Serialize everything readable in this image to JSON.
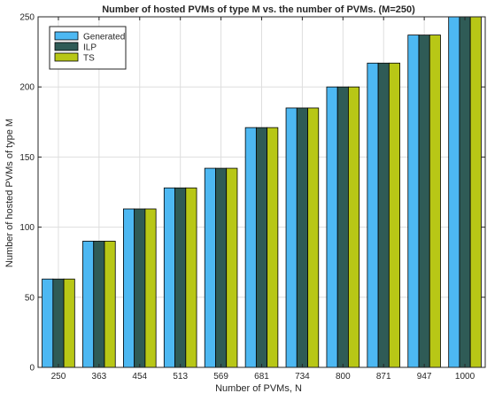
{
  "chart_data": {
    "type": "bar",
    "title": "Number of hosted PVMs of type M vs. the number of PVMs. (M=250)",
    "xlabel": "Number of PVMs, N",
    "ylabel": "Number of hosted PVMs of type M",
    "categories": [
      "250",
      "363",
      "454",
      "513",
      "569",
      "681",
      "734",
      "800",
      "871",
      "947",
      "1000"
    ],
    "series": [
      {
        "name": "Generated",
        "color": "#4DB8F2",
        "values": [
          63,
          90,
          113,
          128,
          142,
          171,
          185,
          200,
          217,
          237,
          250
        ]
      },
      {
        "name": "ILP",
        "color": "#2F5B56",
        "values": [
          63,
          90,
          113,
          128,
          142,
          171,
          185,
          200,
          217,
          237,
          250
        ]
      },
      {
        "name": "TS",
        "color": "#B8C716",
        "values": [
          63,
          90,
          113,
          128,
          142,
          171,
          185,
          200,
          217,
          237,
          250
        ]
      }
    ],
    "ylim": [
      0,
      250
    ],
    "yticks": [
      0,
      50,
      100,
      150,
      200,
      250
    ],
    "grid": true,
    "legend_position": "top-left"
  }
}
